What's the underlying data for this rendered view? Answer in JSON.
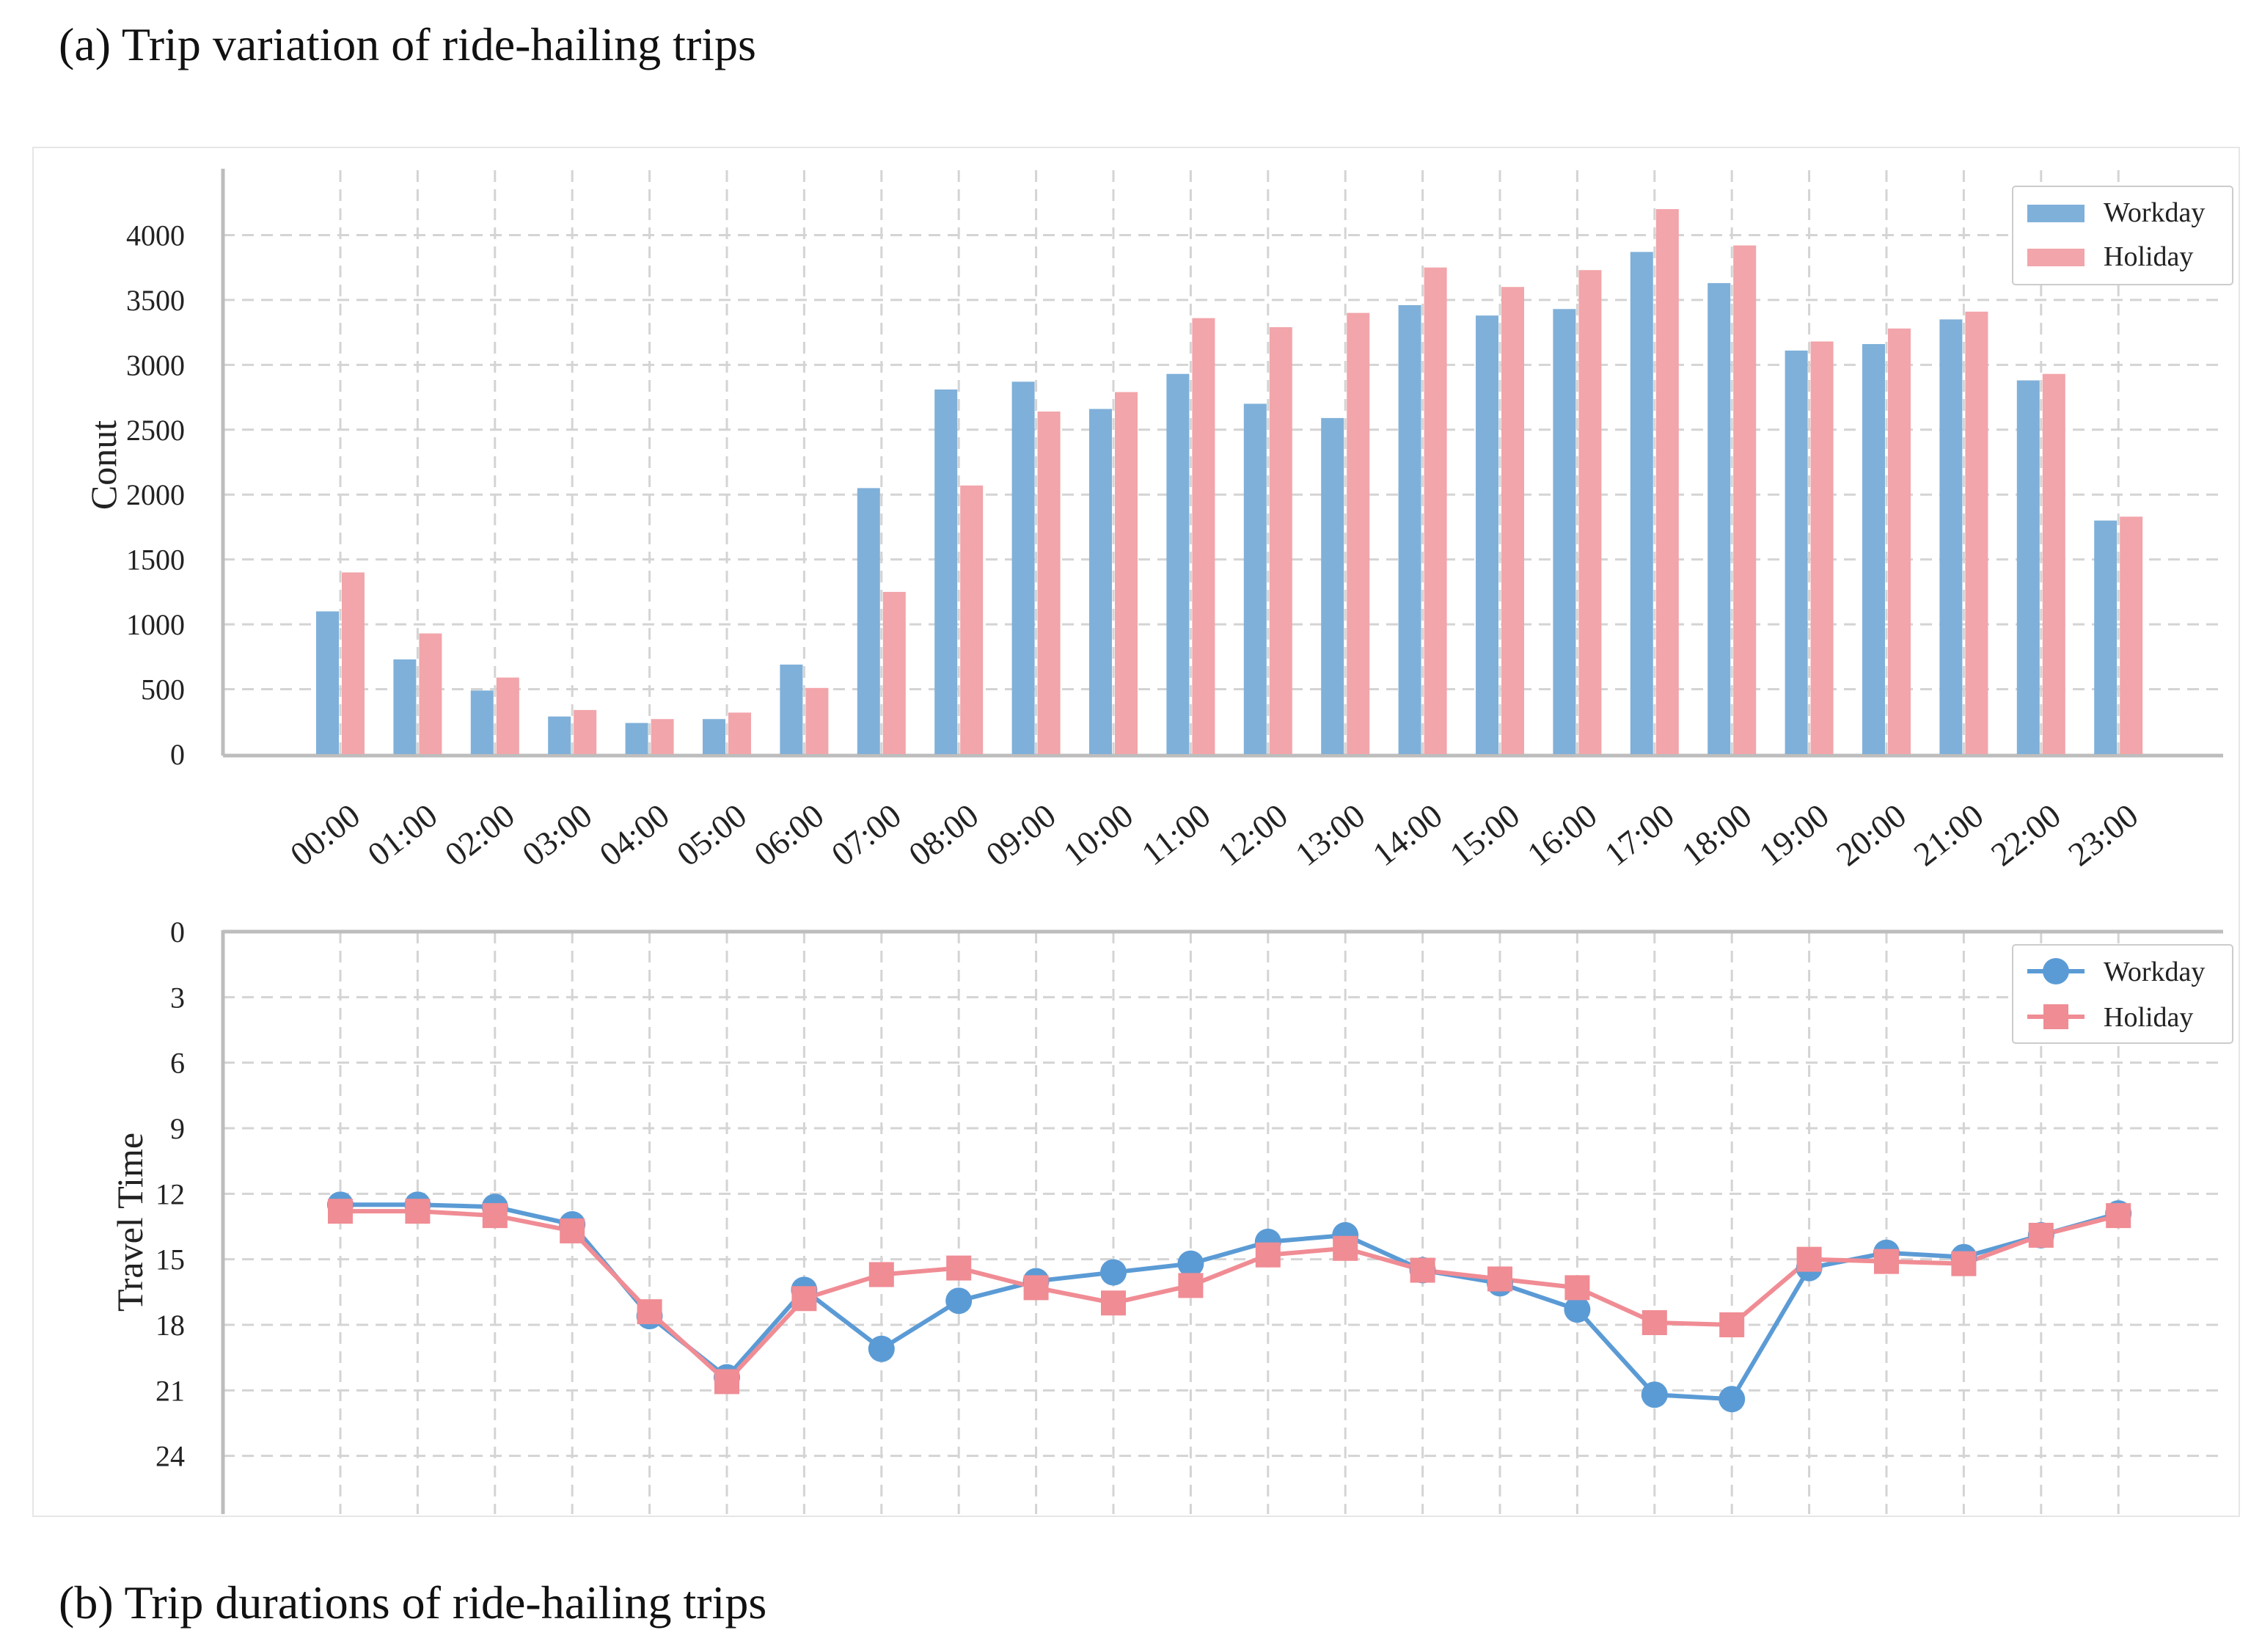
{
  "captions": {
    "a": "(a) Trip variation of ride-hailing trips",
    "b": "(b) Trip durations of ride-hailing trips"
  },
  "colors": {
    "workday": "#7fb0d9",
    "holiday": "#f2a5aa",
    "workday_line": "#5b9bd5",
    "holiday_line": "#f08c94",
    "grid": "#d4d4d4",
    "axis": "#bdbdbd"
  },
  "chart_data": [
    {
      "type": "bar",
      "title": "",
      "xlabel": "",
      "ylabel": "Conut",
      "ylim": [
        0,
        4500
      ],
      "yticks": [
        0,
        500,
        1000,
        1500,
        2000,
        2500,
        3000,
        3500,
        4000
      ],
      "grid": true,
      "legend_position": "top-right",
      "categories": [
        "00:00",
        "01:00",
        "02:00",
        "03:00",
        "04:00",
        "05:00",
        "06:00",
        "07:00",
        "08:00",
        "09:00",
        "10:00",
        "11:00",
        "12:00",
        "13:00",
        "14:00",
        "15:00",
        "16:00",
        "17:00",
        "18:00",
        "19:00",
        "20:00",
        "21:00",
        "22:00",
        "23:00"
      ],
      "series": [
        {
          "name": "Workday",
          "values": [
            1100,
            730,
            490,
            290,
            240,
            270,
            690,
            2050,
            2810,
            2870,
            2660,
            2930,
            2700,
            2590,
            3460,
            3380,
            3430,
            3870,
            3630,
            3110,
            3160,
            3350,
            2880,
            1800
          ]
        },
        {
          "name": "Holiday",
          "values": [
            1400,
            930,
            590,
            340,
            270,
            320,
            510,
            1250,
            2070,
            2640,
            2790,
            3360,
            3290,
            3400,
            3750,
            3600,
            3730,
            4200,
            3920,
            3180,
            3280,
            3410,
            2930,
            1830
          ]
        }
      ]
    },
    {
      "type": "line",
      "title": "",
      "xlabel": "",
      "ylabel": "Travel Time",
      "ylim": [
        0,
        27
      ],
      "y_inverted": true,
      "yticks": [
        0,
        3,
        6,
        9,
        12,
        15,
        18,
        21,
        24
      ],
      "grid": true,
      "legend_position": "top-right",
      "categories": [
        "00:00",
        "01:00",
        "02:00",
        "03:00",
        "04:00",
        "05:00",
        "06:00",
        "07:00",
        "08:00",
        "09:00",
        "10:00",
        "11:00",
        "12:00",
        "13:00",
        "14:00",
        "15:00",
        "16:00",
        "17:00",
        "18:00",
        "19:00",
        "20:00",
        "21:00",
        "22:00",
        "23:00"
      ],
      "series": [
        {
          "name": "Workday",
          "marker": "circle",
          "values": [
            12.5,
            12.5,
            12.6,
            13.4,
            17.6,
            20.4,
            16.4,
            19.1,
            16.9,
            16.0,
            15.6,
            15.2,
            14.2,
            13.9,
            15.5,
            16.1,
            17.3,
            21.2,
            21.4,
            15.4,
            14.7,
            14.9,
            13.9,
            12.9
          ]
        },
        {
          "name": "Holiday",
          "marker": "square",
          "values": [
            12.8,
            12.8,
            13.0,
            13.7,
            17.4,
            20.6,
            16.8,
            15.7,
            15.4,
            16.3,
            17.0,
            16.2,
            14.8,
            14.5,
            15.5,
            15.9,
            16.3,
            17.9,
            18.0,
            15.0,
            15.1,
            15.2,
            13.9,
            13.0
          ]
        }
      ]
    }
  ]
}
